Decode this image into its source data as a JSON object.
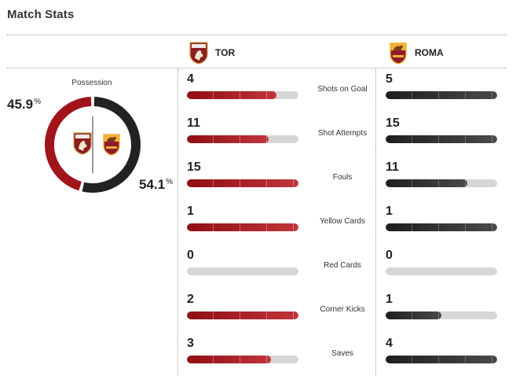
{
  "header": {
    "title": "Match Stats"
  },
  "teams": {
    "home": {
      "abbr": "TOR",
      "crest_icon": "torino-crest-icon",
      "color": "#8f0e12"
    },
    "away": {
      "abbr": "ROMA",
      "crest_icon": "roma-crest-icon",
      "color": "#f3b234"
    }
  },
  "possession": {
    "label": "Possession",
    "home_value": "45.9",
    "away_value": "54.1",
    "unit": "%"
  },
  "stats": [
    {
      "label": "Shots on Goal",
      "home": "4",
      "away": "5",
      "home_fill": 0.8,
      "away_fill": 1.0
    },
    {
      "label": "Shot Attempts",
      "home": "11",
      "away": "15",
      "home_fill": 0.73,
      "away_fill": 1.0
    },
    {
      "label": "Fouls",
      "home": "15",
      "away": "11",
      "home_fill": 1.0,
      "away_fill": 0.73
    },
    {
      "label": "Yellow Cards",
      "home": "1",
      "away": "1",
      "home_fill": 1.0,
      "away_fill": 1.0
    },
    {
      "label": "Red Cards",
      "home": "0",
      "away": "0",
      "home_fill": 0.0,
      "away_fill": 0.0
    },
    {
      "label": "Corner Kicks",
      "home": "2",
      "away": "1",
      "home_fill": 1.0,
      "away_fill": 0.5
    },
    {
      "label": "Saves",
      "home": "3",
      "away": "4",
      "home_fill": 0.75,
      "away_fill": 1.0
    }
  ]
}
